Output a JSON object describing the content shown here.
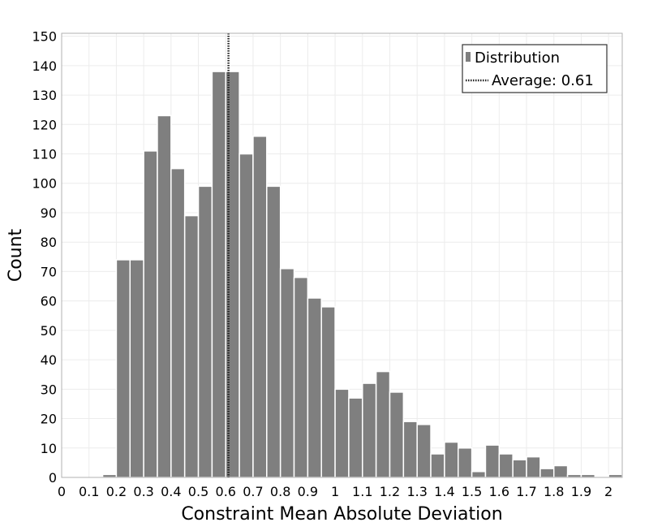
{
  "chart_data": {
    "type": "bar",
    "xlabel": "Constraint Mean Absolute Deviation",
    "ylabel": "Count",
    "xlim": [
      0,
      2.05
    ],
    "ylim": [
      0,
      151
    ],
    "grid": true,
    "bin_width": 0.05,
    "bin_starts": [
      0.15,
      0.2,
      0.25,
      0.3,
      0.35,
      0.4,
      0.45,
      0.5,
      0.55,
      0.6,
      0.65,
      0.7,
      0.75,
      0.8,
      0.85,
      0.9,
      0.95,
      1.0,
      1.05,
      1.1,
      1.15,
      1.2,
      1.25,
      1.3,
      1.35,
      1.4,
      1.45,
      1.5,
      1.55,
      1.6,
      1.65,
      1.7,
      1.75,
      1.8,
      1.85,
      1.9,
      1.95,
      2.0
    ],
    "values": [
      1,
      74,
      74,
      111,
      123,
      105,
      89,
      99,
      138,
      138,
      110,
      116,
      99,
      71,
      68,
      61,
      58,
      30,
      27,
      32,
      36,
      29,
      19,
      18,
      8,
      12,
      10,
      2,
      11,
      8,
      6,
      7,
      3,
      4,
      1,
      1,
      0,
      1
    ],
    "x_ticks": [
      "0",
      "0.1",
      "0.2",
      "0.3",
      "0.4",
      "0.5",
      "0.6",
      "0.7",
      "0.8",
      "0.9",
      "1",
      "1.1",
      "1.2",
      "1.3",
      "1.4",
      "1.5",
      "1.6",
      "1.7",
      "1.8",
      "1.9",
      "2"
    ],
    "y_ticks": [
      "0",
      "10",
      "20",
      "30",
      "40",
      "50",
      "60",
      "70",
      "80",
      "90",
      "100",
      "110",
      "120",
      "130",
      "140",
      "150"
    ],
    "average": 0.61,
    "legend": {
      "position": "top-right",
      "items": [
        "Distribution",
        "Average: 0.61"
      ]
    },
    "colors": {
      "bar": "#7f7f7f",
      "bar_edge": "#ffffff",
      "average_line": "#222222",
      "grid": "#ececec",
      "frame": "#b0b0b0"
    }
  }
}
